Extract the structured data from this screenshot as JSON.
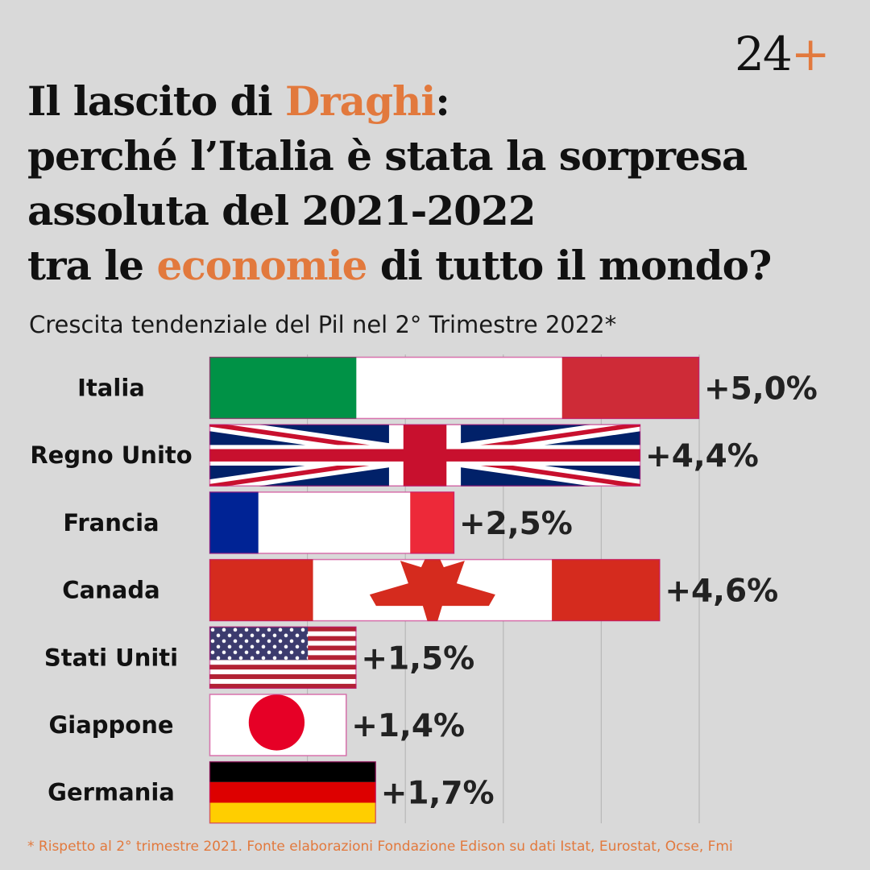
{
  "brand": {
    "logo_number": "24",
    "logo_plus": "+"
  },
  "headline": {
    "line1_a": "Il lascito di ",
    "line1_b": "Draghi",
    "line1_c": ":",
    "line2": "perché l’Italia è stata la sorpresa",
    "line3": "assoluta del 2021-2022",
    "line4_a": "tra le ",
    "line4_b": "economie",
    "line4_c": " di tutto il mondo?"
  },
  "colors": {
    "accent": "#e2793d",
    "background": "#d9d9d9",
    "text": "#111111"
  },
  "chart_data": {
    "type": "bar",
    "orientation": "horizontal",
    "title": "Crescita tendenziale del Pil nel 2° Trimestre 2022*",
    "xlabel": "",
    "ylabel": "",
    "xlim": [
      0,
      5
    ],
    "grid": true,
    "categories": [
      "Italia",
      "Regno Unito",
      "Francia",
      "Canada",
      "Stati Uniti",
      "Giappone",
      "Germania"
    ],
    "values": [
      5.0,
      4.4,
      2.5,
      4.6,
      1.5,
      1.4,
      1.7
    ],
    "labels": [
      "+5,0%",
      "+4,4%",
      "+2,5%",
      "+4,6%",
      "+1,5%",
      "+1,4%",
      "+1,7%"
    ],
    "bar_fill": [
      "flag-italy",
      "flag-uk",
      "flag-france",
      "flag-canada",
      "flag-usa",
      "flag-japan",
      "flag-germany"
    ]
  },
  "footnote": "* Rispetto al 2° trimestre 2021. Fonte elaborazioni Fondazione Edison su dati Istat, Eurostat, Ocse, Fmi"
}
